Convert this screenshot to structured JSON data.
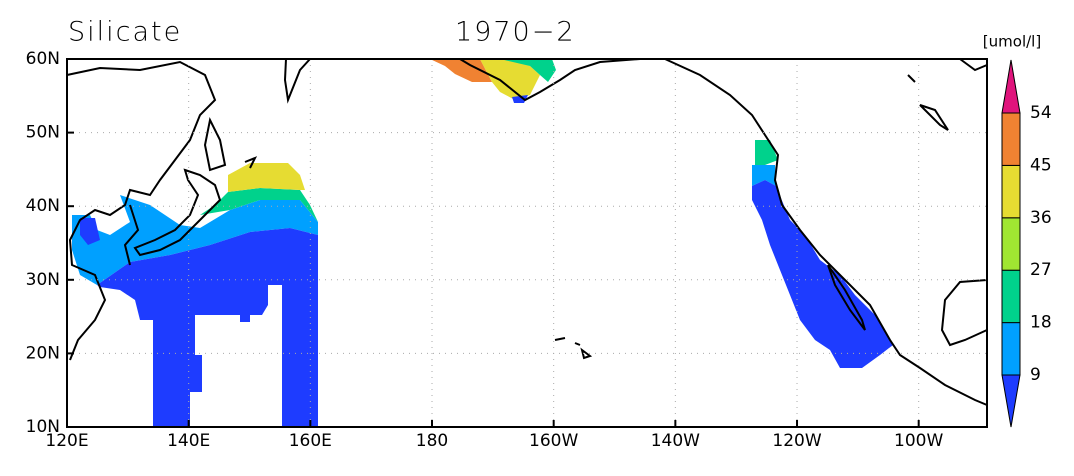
{
  "title": "Silicate",
  "period": "1970−2",
  "unit": "[umol/l]",
  "lat_labels": [
    "60N",
    "50N",
    "40N",
    "30N",
    "20N",
    "10N"
  ],
  "lon_labels": [
    "120E",
    "140E",
    "160E",
    "180",
    "160W",
    "140W",
    "120W",
    "100W"
  ],
  "colorbar": {
    "labels": [
      "9",
      "18",
      "27",
      "36",
      "45",
      "54"
    ],
    "colors": [
      "#1e3cff",
      "#00a0ff",
      "#00d28c",
      "#a0e632",
      "#e6dc32",
      "#f08232",
      "#e0147c"
    ]
  }
}
